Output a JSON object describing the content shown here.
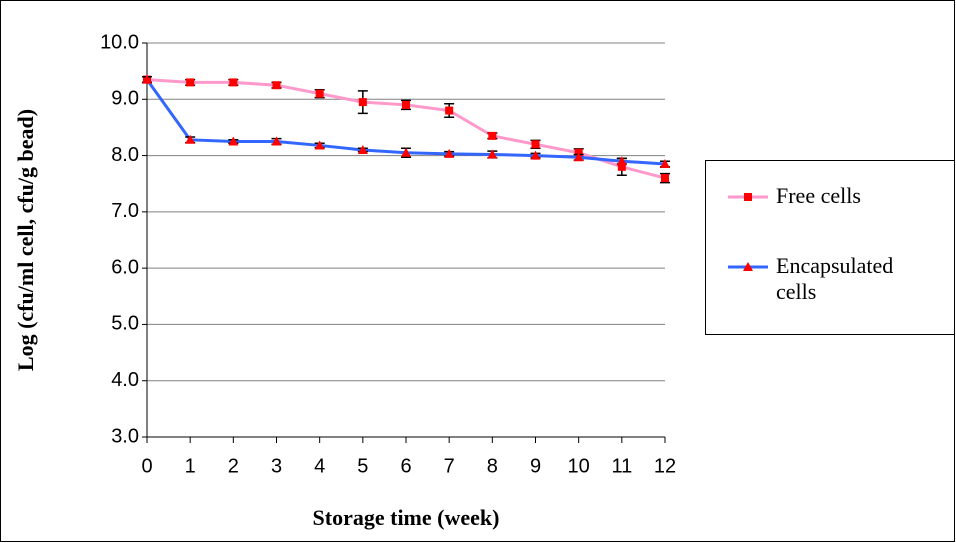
{
  "chart_data": {
    "type": "line",
    "xlabel": "Storage time (week)",
    "ylabel": "Log (cfu/ml cell, cfu/g bead)",
    "x": [
      0,
      1,
      2,
      3,
      4,
      5,
      6,
      7,
      8,
      9,
      10,
      11,
      12
    ],
    "xlim": [
      0,
      12
    ],
    "xticks": [
      0,
      1,
      2,
      3,
      4,
      5,
      6,
      7,
      8,
      9,
      10,
      11,
      12
    ],
    "ylim": [
      3,
      10
    ],
    "yticks": [
      {
        "value": 3,
        "label": "3.0"
      },
      {
        "value": 4,
        "label": "4.0"
      },
      {
        "value": 5,
        "label": "5.0"
      },
      {
        "value": 6,
        "label": "6.0"
      },
      {
        "value": 7,
        "label": "7.0"
      },
      {
        "value": 8,
        "label": "8.0"
      },
      {
        "value": 9,
        "label": "9.0"
      },
      {
        "value": 10,
        "label": "10.0"
      }
    ],
    "grid": true,
    "legend": "right",
    "series": [
      {
        "name": "Free cells",
        "color": "#ff99cc",
        "marker": "square",
        "marker_color": "#ff0000",
        "values": [
          9.35,
          9.3,
          9.3,
          9.25,
          9.1,
          8.95,
          8.9,
          8.8,
          8.35,
          8.2,
          8.05,
          7.8,
          7.6
        ],
        "errors": [
          0.05,
          0.05,
          0.05,
          0.05,
          0.07,
          0.2,
          0.08,
          0.12,
          0.05,
          0.07,
          0.07,
          0.15,
          0.08
        ]
      },
      {
        "name": "Encapsulated cells",
        "color": "#3366ff",
        "marker": "triangle",
        "marker_color": "#ff0000",
        "values": [
          9.35,
          8.28,
          8.25,
          8.25,
          8.18,
          8.1,
          8.05,
          8.03,
          8.02,
          8.0,
          7.97,
          7.9,
          7.85
        ],
        "errors": [
          0.05,
          0.05,
          0.03,
          0.05,
          0.04,
          0.03,
          0.08,
          0.04,
          0.06,
          0.04,
          0.05,
          0.05,
          0.05
        ]
      }
    ]
  }
}
